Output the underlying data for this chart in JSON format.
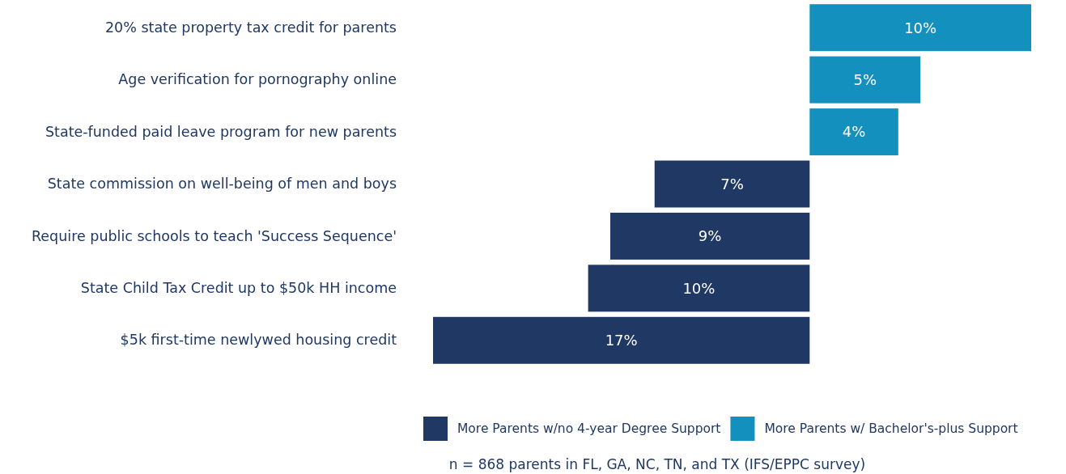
{
  "chart_data": [
    {
      "type": "bar",
      "orientation": "horizontal",
      "xlim": [
        0,
        10
      ],
      "categories": [
        "20% state property tax credit for parents",
        "Age verification for pornography online",
        "State-funded paid leave program for new parents"
      ],
      "series": [
        {
          "name": "More Parents w/ Bachelor's-plus Support",
          "color": "#1390bd",
          "values": [
            10,
            5,
            4
          ],
          "value_labels": [
            "10%",
            "5%",
            "4%"
          ]
        }
      ],
      "tick_labels": "y",
      "grid": false,
      "legend": "bottom"
    },
    {
      "type": "bar",
      "orientation": "horizontal",
      "xlim": [
        17,
        0
      ],
      "categories": [
        "State commission on well-being of men and boys",
        "Require public schools to teach 'Success Sequence'",
        "State Child Tax Credit up to $50k HH income",
        "$5k first-time newlywed housing credit"
      ],
      "series": [
        {
          "name": "More Parents w/no 4-year Degree Support",
          "color": "#203864",
          "values": [
            7,
            9,
            10,
            17
          ],
          "value_labels": [
            "7%",
            "9%",
            "10%",
            "17%"
          ]
        }
      ],
      "tick_labels": "y",
      "grid": false,
      "legend": "bottom",
      "annotations": [
        "n = 868 parents in FL, GA, NC, TN, and TX (IFS/EPPC survey)"
      ]
    }
  ]
}
